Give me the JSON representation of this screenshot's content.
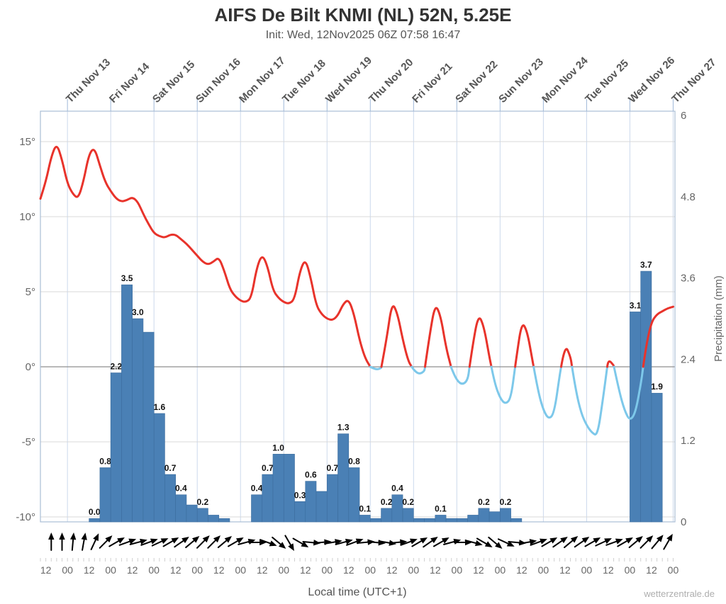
{
  "chart": {
    "title": "AIFS De Bilt KNMI (NL) 52N, 5.25E",
    "subtitle": "Init: Wed, 12Nov2025 06Z 07:58 16:47",
    "xlabel": "Local time (UTC+1)",
    "watermark": "wetterzentrale.de"
  },
  "chart_data": {
    "type": "line",
    "subtype": "meteogram: temperature line + precipitation bars + wind arrows",
    "title": "AIFS De Bilt KNMI (NL) 52N, 5.25E",
    "time_axis": {
      "hours_span": 352,
      "day_tick_hours": [
        15,
        39,
        63,
        87,
        111,
        135,
        159,
        183,
        207,
        231,
        255,
        279,
        303,
        327,
        351
      ],
      "day_labels": [
        "Thu Nov 13",
        "Fri Nov 14",
        "Sat Nov 15",
        "Sun Nov 16",
        "Mon Nov 17",
        "Tue Nov 18",
        "Wed Nov 19",
        "Thu Nov 20",
        "Fri Nov 21",
        "Sat Nov 22",
        "Sun Nov 23",
        "Mon Nov 24",
        "Tue Nov 25",
        "Wed Nov 26",
        "Thu Nov 27"
      ],
      "bottom_ticks": {
        "start_hour": 3,
        "step_hours": 12,
        "labels": [
          "12",
          "00",
          "12",
          "00",
          "12",
          "00",
          "12",
          "00",
          "12",
          "00",
          "12",
          "00",
          "12",
          "00",
          "12",
          "00",
          "12",
          "00",
          "12",
          "00",
          "12",
          "00",
          "12",
          "00",
          "12",
          "00",
          "12",
          "00",
          "12",
          "00"
        ]
      }
    },
    "temperature": {
      "unit": "degC",
      "axis_ticks": [
        "15°",
        "10°",
        "5°",
        "0°",
        "-5°",
        "-10°"
      ],
      "tick_values": [
        15,
        10,
        5,
        0,
        -5,
        -10
      ],
      "ylim": [
        -10.5,
        17.1
      ],
      "color_above_zero": "#e8332b",
      "color_below_zero": "#7dc8ea",
      "start_hour": 0,
      "step_hours": 3,
      "values": [
        11.2,
        12.3,
        14.0,
        14.9,
        13.8,
        12.2,
        11.5,
        11.2,
        12.4,
        14.2,
        14.6,
        13.4,
        12.3,
        11.7,
        11.2,
        11.0,
        11.1,
        11.3,
        11.0,
        10.2,
        9.5,
        8.9,
        8.7,
        8.6,
        8.8,
        8.8,
        8.5,
        8.2,
        7.8,
        7.4,
        7.0,
        6.8,
        7.0,
        7.3,
        6.4,
        5.2,
        4.7,
        4.4,
        4.3,
        4.6,
        6.6,
        7.5,
        6.7,
        5.1,
        4.6,
        4.3,
        4.2,
        4.5,
        6.4,
        7.2,
        5.9,
        4.1,
        3.5,
        3.2,
        3.1,
        3.4,
        4.2,
        4.5,
        3.5,
        1.8,
        0.6,
        0.0,
        -0.2,
        -0.1,
        1.8,
        4.3,
        3.6,
        1.8,
        0.4,
        -0.2,
        -0.5,
        -0.3,
        2.2,
        4.2,
        3.4,
        1.3,
        -0.1,
        -0.9,
        -1.2,
        -0.9,
        1.6,
        3.5,
        2.7,
        0.7,
        -1.1,
        -2.1,
        -2.5,
        -2.1,
        0.6,
        3.0,
        2.4,
        0.4,
        -1.6,
        -2.9,
        -3.5,
        -3.1,
        -0.6,
        1.5,
        0.7,
        -1.6,
        -3.1,
        -3.9,
        -4.4,
        -4.6,
        -2.2,
        0.5,
        0.1,
        -1.6,
        -2.9,
        -3.6,
        -3.1,
        -1.2,
        1.4,
        3.0,
        3.5,
        3.7,
        3.9,
        4.0
      ]
    },
    "precipitation": {
      "unit": "mm",
      "ylabel": "Precipitation (mm)",
      "axis_ticks": [
        "6",
        "4.8",
        "3.6",
        "2.4",
        "1.2",
        "0"
      ],
      "tick_values": [
        6,
        4.8,
        3.6,
        2.4,
        1.2,
        0
      ],
      "ylim": [
        0,
        6
      ],
      "bar_color": "#4a80b5",
      "bar_edge_color": "#3c6d9e",
      "start_hour": 3,
      "interval_hours": 6,
      "values": [
        0,
        0,
        0,
        0,
        0.05,
        0.8,
        2.2,
        3.5,
        3.0,
        2.8,
        1.6,
        0.7,
        0.4,
        0.25,
        0.2,
        0.1,
        0.05,
        0,
        0,
        0.4,
        0.7,
        1.0,
        1.0,
        0.3,
        0.6,
        0.45,
        0.7,
        1.3,
        0.8,
        0.1,
        0.05,
        0.2,
        0.4,
        0.2,
        0.05,
        0.05,
        0.1,
        0.05,
        0.05,
        0.1,
        0.2,
        0.15,
        0.2,
        0.05,
        0,
        0,
        0,
        0,
        0,
        0,
        0,
        0,
        0,
        0,
        3.1,
        3.7,
        1.9,
        0
      ],
      "labels": {
        "4": "0.0",
        "5": "0.8",
        "6": "2.2",
        "7": "3.5",
        "8": "3.0",
        "10": "1.6",
        "11": "0.7",
        "12": "0.4",
        "14": "0.2",
        "19": "0.4",
        "20": "0.7",
        "21": "1.0",
        "23": "0.3",
        "24": "0.6",
        "26": "0.7",
        "27": "1.3",
        "28": "0.8",
        "29": "0.1",
        "31": "0.2",
        "32": "0.4",
        "33": "0.2",
        "36": "0.1",
        "40": "0.2",
        "42": "0.2",
        "54": "3.1",
        "55": "3.7",
        "56": "1.9"
      }
    },
    "wind": {
      "angle_convention": "degrees clockwise from up",
      "arrow_color": "#000000",
      "start_hour": 6,
      "step_hours": 6,
      "angles_deg": [
        0,
        0,
        5,
        10,
        25,
        45,
        60,
        70,
        75,
        70,
        65,
        60,
        55,
        50,
        45,
        45,
        50,
        60,
        75,
        90,
        110,
        130,
        150,
        120,
        95,
        85,
        80,
        75,
        70,
        85,
        95,
        100,
        85,
        70,
        60,
        55,
        60,
        75,
        90,
        105,
        120,
        130,
        115,
        95,
        80,
        70,
        60,
        55,
        50,
        55,
        60,
        65,
        70,
        60,
        50,
        45,
        40,
        30
      ]
    },
    "colors": {
      "grid": "#d8d8d8",
      "zero_line": "#8f8f8f",
      "day_gridline": "#ccd9ec",
      "frame": "#a9bdd6",
      "tick_text": "#666666",
      "day_text": "#555555"
    },
    "layout_hints": {
      "grid": true,
      "legend": "none",
      "x_axis_bottom": "local time ticks 12/00",
      "x_axis_top": "rotated day labels"
    }
  }
}
